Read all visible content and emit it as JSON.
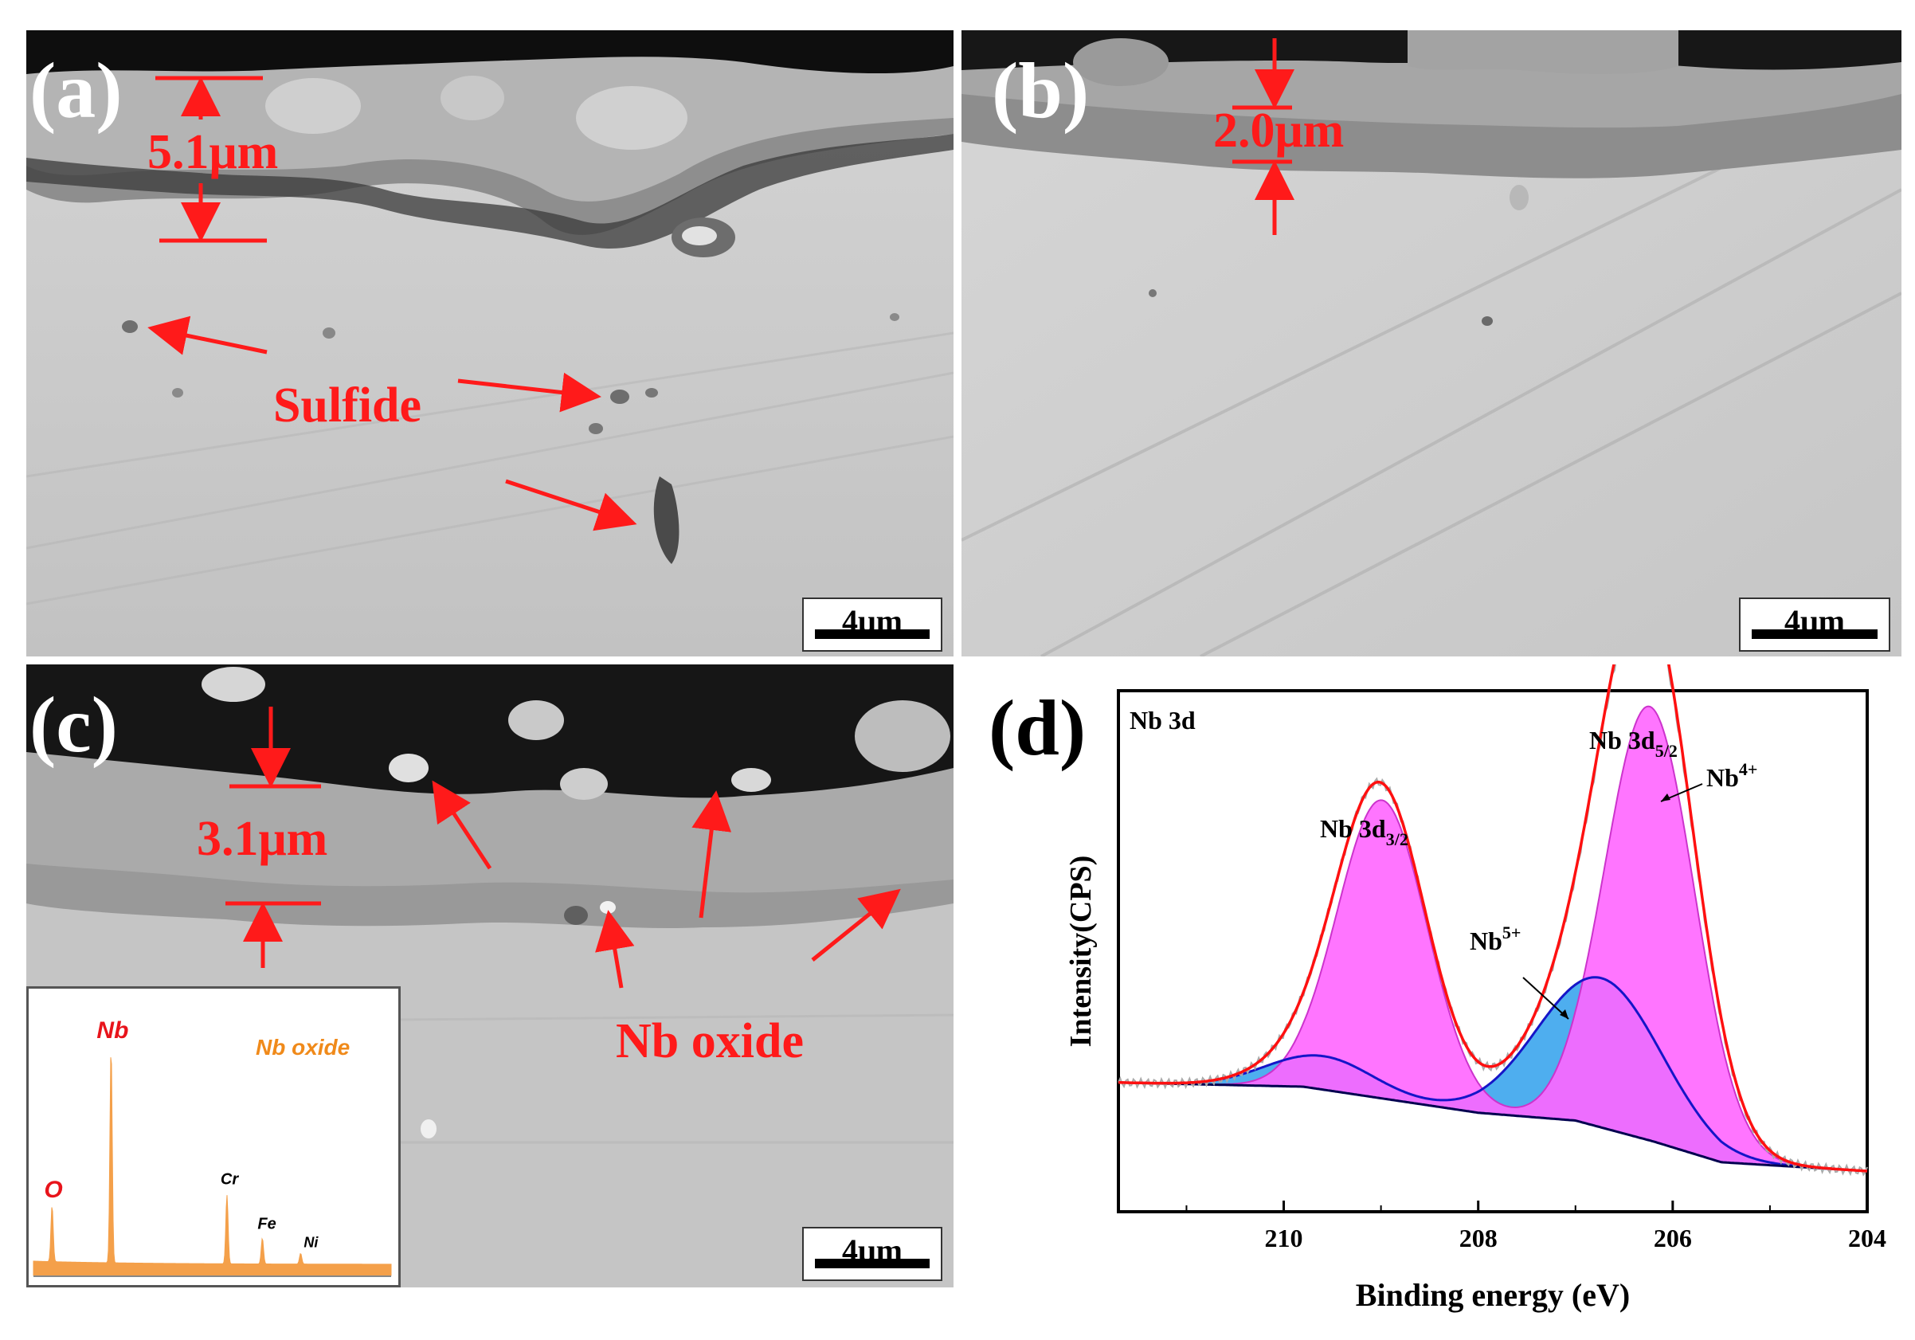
{
  "panels": {
    "a": {
      "label": "(a)",
      "thickness": "5.1μm",
      "annotation": "Sulfide",
      "scale": "4μm"
    },
    "b": {
      "label": "(b)",
      "thickness": "2.0μm",
      "scale": "4μm"
    },
    "c": {
      "label": "(c)",
      "thickness": "3.1μm",
      "annotation": "Nb oxide",
      "scale": "4μm",
      "eds_inset": {
        "title": "Nb oxide",
        "peaks": [
          {
            "element": "O",
            "energy_keV": 0.52,
            "relative_height": 0.26,
            "color": "#e8141b"
          },
          {
            "element": "Nb",
            "energy_keV": 2.17,
            "relative_height": 1.0,
            "color": "#e8141b"
          },
          {
            "element": "Cr",
            "energy_keV": 5.41,
            "relative_height": 0.32,
            "color": "#000000"
          },
          {
            "element": "Fe",
            "energy_keV": 6.4,
            "relative_height": 0.12,
            "color": "#000000"
          },
          {
            "element": "Ni",
            "energy_keV": 7.47,
            "relative_height": 0.05,
            "color": "#000000"
          }
        ],
        "fill_color": "#f4a04a"
      }
    },
    "d": {
      "label": "(d)",
      "corner_label": "Nb 3d",
      "peak_labels": {
        "d32_main": "Nb 3d",
        "d32_sub": "3/2",
        "d52_main": "Nb 3d",
        "d52_sub": "5/2",
        "nb4_main": "Nb",
        "nb4_sup": "4+",
        "nb5_main": "Nb",
        "nb5_sup": "5+"
      }
    }
  },
  "chart_data": {
    "type": "line",
    "title": "Nb 3d",
    "xlabel": "Binding energy (eV)",
    "ylabel": "Intensity(CPS)",
    "xlim": [
      211.7,
      204
    ],
    "x_reversed": true,
    "x_ticks": [
      210,
      208,
      206,
      204
    ],
    "ylim": [
      0,
      1
    ],
    "y_ticks_shown": false,
    "series": [
      {
        "name": "Nb",
        "sup": "4+",
        "shape": "gaussian",
        "centers": [
          206.25,
          209.0
        ],
        "heights": [
          0.97,
          0.79
        ],
        "widths_sigma": [
          0.46,
          0.46
        ],
        "fill": "#ff66ff",
        "stroke": "#cc33cc"
      },
      {
        "name": "Nb",
        "sup": "5+",
        "shape": "gaussian",
        "centers": [
          206.8,
          209.7
        ],
        "heights": [
          0.45,
          0.3
        ],
        "widths_sigma": [
          0.62,
          0.52
        ],
        "fill": "#44aaee",
        "stroke": "#1515c8"
      }
    ],
    "background": {
      "points": [
        [
          211.7,
          0.248
        ],
        [
          209.8,
          0.24
        ],
        [
          208.0,
          0.19
        ],
        [
          207.0,
          0.175
        ],
        [
          206.2,
          0.135
        ],
        [
          205.5,
          0.095
        ],
        [
          204.0,
          0.078
        ]
      ],
      "stroke": "#000050"
    },
    "envelope_color": "#ff1010",
    "raw_color": "#aaaaaa"
  }
}
